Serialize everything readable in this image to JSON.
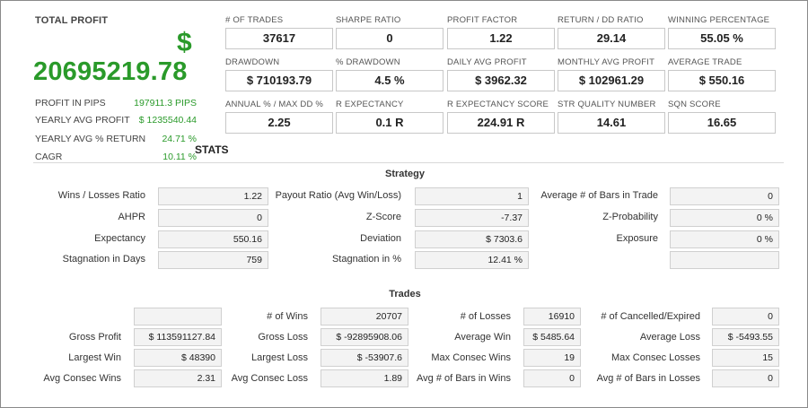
{
  "profit": {
    "title": "TOTAL PROFIT",
    "currency": "$",
    "amount": "20695219.78",
    "rows": [
      {
        "label": "PROFIT IN PIPS",
        "value": "197911.3 PIPS"
      },
      {
        "label": "YEARLY AVG PROFIT",
        "value": "$ 1235540.44"
      },
      {
        "label": "YEARLY AVG % RETURN",
        "value": "24.71 %"
      },
      {
        "label": "CAGR",
        "value": "10.11 %"
      }
    ]
  },
  "metrics": [
    {
      "label": "# OF TRADES",
      "value": "37617"
    },
    {
      "label": "SHARPE RATIO",
      "value": "0"
    },
    {
      "label": "PROFIT FACTOR",
      "value": "1.22"
    },
    {
      "label": "RETURN / DD RATIO",
      "value": "29.14"
    },
    {
      "label": "WINNING PERCENTAGE",
      "value": "55.05 %"
    },
    {
      "label": "DRAWDOWN",
      "value": "$ 710193.79"
    },
    {
      "label": "% DRAWDOWN",
      "value": "4.5 %"
    },
    {
      "label": "DAILY AVG PROFIT",
      "value": "$ 3962.32"
    },
    {
      "label": "MONTHLY AVG PROFIT",
      "value": "$ 102961.29"
    },
    {
      "label": "AVERAGE TRADE",
      "value": "$ 550.16"
    },
    {
      "label": "ANNUAL % / MAX DD %",
      "value": "2.25"
    },
    {
      "label": "R EXPECTANCY",
      "value": "0.1 R"
    },
    {
      "label": "R EXPECTANCY SCORE",
      "value": "224.91 R"
    },
    {
      "label": "STR QUALITY NUMBER",
      "value": "14.61"
    },
    {
      "label": "SQN SCORE",
      "value": "16.65"
    }
  ],
  "stats_title": "STATS",
  "strategy": {
    "title": "Strategy",
    "rows": [
      [
        {
          "label": "Wins / Losses Ratio",
          "value": "1.22"
        },
        {
          "label": "Payout Ratio (Avg Win/Loss)",
          "value": "1"
        },
        {
          "label": "Average # of Bars in Trade",
          "value": "0"
        }
      ],
      [
        {
          "label": "AHPR",
          "value": "0"
        },
        {
          "label": "Z-Score",
          "value": "-7.37"
        },
        {
          "label": "Z-Probability",
          "value": "0 %"
        }
      ],
      [
        {
          "label": "Expectancy",
          "value": "550.16"
        },
        {
          "label": "Deviation",
          "value": "$ 7303.6"
        },
        {
          "label": "Exposure",
          "value": "0 %"
        }
      ],
      [
        {
          "label": "Stagnation in Days",
          "value": "759"
        },
        {
          "label": "Stagnation in %",
          "value": "12.41 %"
        },
        {
          "label": "",
          "value": ""
        }
      ]
    ]
  },
  "trades": {
    "title": "Trades",
    "rows": [
      [
        {
          "label": "",
          "value": ""
        },
        {
          "label": "# of Wins",
          "value": "20707"
        },
        {
          "label": "# of Losses",
          "value": "16910"
        },
        {
          "label": "# of Cancelled/Expired",
          "value": "0"
        }
      ],
      [
        {
          "label": "Gross Profit",
          "value": "$ 113591127.84"
        },
        {
          "label": "Gross Loss",
          "value": "$ -92895908.06"
        },
        {
          "label": "Average Win",
          "value": "$ 5485.64"
        },
        {
          "label": "Average Loss",
          "value": "$ -5493.55"
        }
      ],
      [
        {
          "label": "Largest Win",
          "value": "$ 48390"
        },
        {
          "label": "Largest Loss",
          "value": "$ -53907.6"
        },
        {
          "label": "Max Consec Wins",
          "value": "19"
        },
        {
          "label": "Max Consec Losses",
          "value": "15"
        }
      ],
      [
        {
          "label": "Avg Consec Wins",
          "value": "2.31"
        },
        {
          "label": "Avg Consec Loss",
          "value": "1.89"
        },
        {
          "label": "Avg # of Bars in Wins",
          "value": "0"
        },
        {
          "label": "Avg # of Bars in Losses",
          "value": "0"
        }
      ]
    ]
  }
}
